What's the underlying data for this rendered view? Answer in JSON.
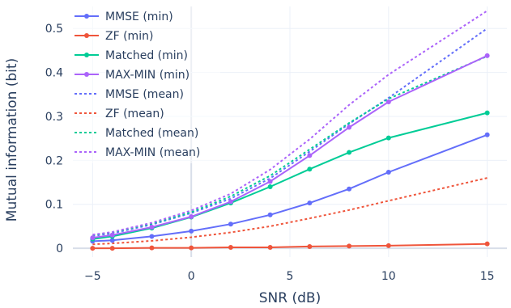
{
  "chart_data": {
    "type": "line",
    "title": "",
    "xlabel": "SNR (dB)",
    "ylabel": "Mutual information (bit)",
    "xlim": [
      -6,
      16
    ],
    "ylim": [
      -0.02,
      0.55
    ],
    "x_ticks": [
      -5,
      0,
      5,
      10,
      15
    ],
    "x_tick_labels": [
      "−5",
      "0",
      "5",
      "10",
      "15"
    ],
    "y_ticks": [
      0,
      0.1,
      0.2,
      0.3,
      0.4,
      0.5
    ],
    "y_tick_labels": [
      "0",
      "0.1",
      "0.2",
      "0.3",
      "0.4",
      "0.5"
    ],
    "grid": true,
    "legend_position": "top-left",
    "x": [
      -5,
      -4,
      -2,
      0,
      2,
      4,
      6,
      8,
      10,
      15
    ],
    "series": [
      {
        "name": "MMSE (min)",
        "color": "#636efa",
        "style": "solid",
        "markers": true,
        "values": [
          0.016,
          0.018,
          0.027,
          0.039,
          0.055,
          0.076,
          0.103,
          0.135,
          0.173,
          0.258
        ]
      },
      {
        "name": "ZF (min)",
        "color": "#ef553b",
        "style": "solid",
        "markers": true,
        "values": [
          0.0,
          0.0,
          0.001,
          0.001,
          0.002,
          0.002,
          0.004,
          0.005,
          0.006,
          0.01
        ]
      },
      {
        "name": "Matched (min)",
        "color": "#00cc96",
        "style": "solid",
        "markers": true,
        "values": [
          0.021,
          0.027,
          0.046,
          0.071,
          0.103,
          0.14,
          0.18,
          0.218,
          0.251,
          0.308
        ]
      },
      {
        "name": "MAX-MIN (min)",
        "color": "#ab63fa",
        "style": "solid",
        "markers": true,
        "values": [
          0.024,
          0.03,
          0.048,
          0.072,
          0.106,
          0.152,
          0.211,
          0.275,
          0.333,
          0.438
        ]
      },
      {
        "name": "MMSE (mean)",
        "color": "#636efa",
        "style": "dot",
        "markers": false,
        "values": [
          0.028,
          0.034,
          0.054,
          0.08,
          0.113,
          0.159,
          0.22,
          0.283,
          0.342,
          0.5
        ]
      },
      {
        "name": "ZF (mean)",
        "color": "#ef553b",
        "style": "dot",
        "markers": false,
        "values": [
          0.009,
          0.011,
          0.017,
          0.025,
          0.036,
          0.05,
          0.068,
          0.087,
          0.108,
          0.16
        ]
      },
      {
        "name": "Matched (mean)",
        "color": "#00cc96",
        "style": "dot",
        "markers": false,
        "values": [
          0.03,
          0.036,
          0.056,
          0.082,
          0.118,
          0.165,
          0.225,
          0.285,
          0.34,
          0.437
        ]
      },
      {
        "name": "MAX-MIN (mean)",
        "color": "#ab63fa",
        "style": "dot",
        "markers": false,
        "values": [
          0.031,
          0.037,
          0.058,
          0.086,
          0.124,
          0.179,
          0.248,
          0.326,
          0.395,
          0.54
        ]
      }
    ],
    "colors": {
      "grid": "#ebf0f8",
      "zero_line": "#d8dee9",
      "text": "#2a3f5f",
      "background": "#ffffff"
    }
  }
}
